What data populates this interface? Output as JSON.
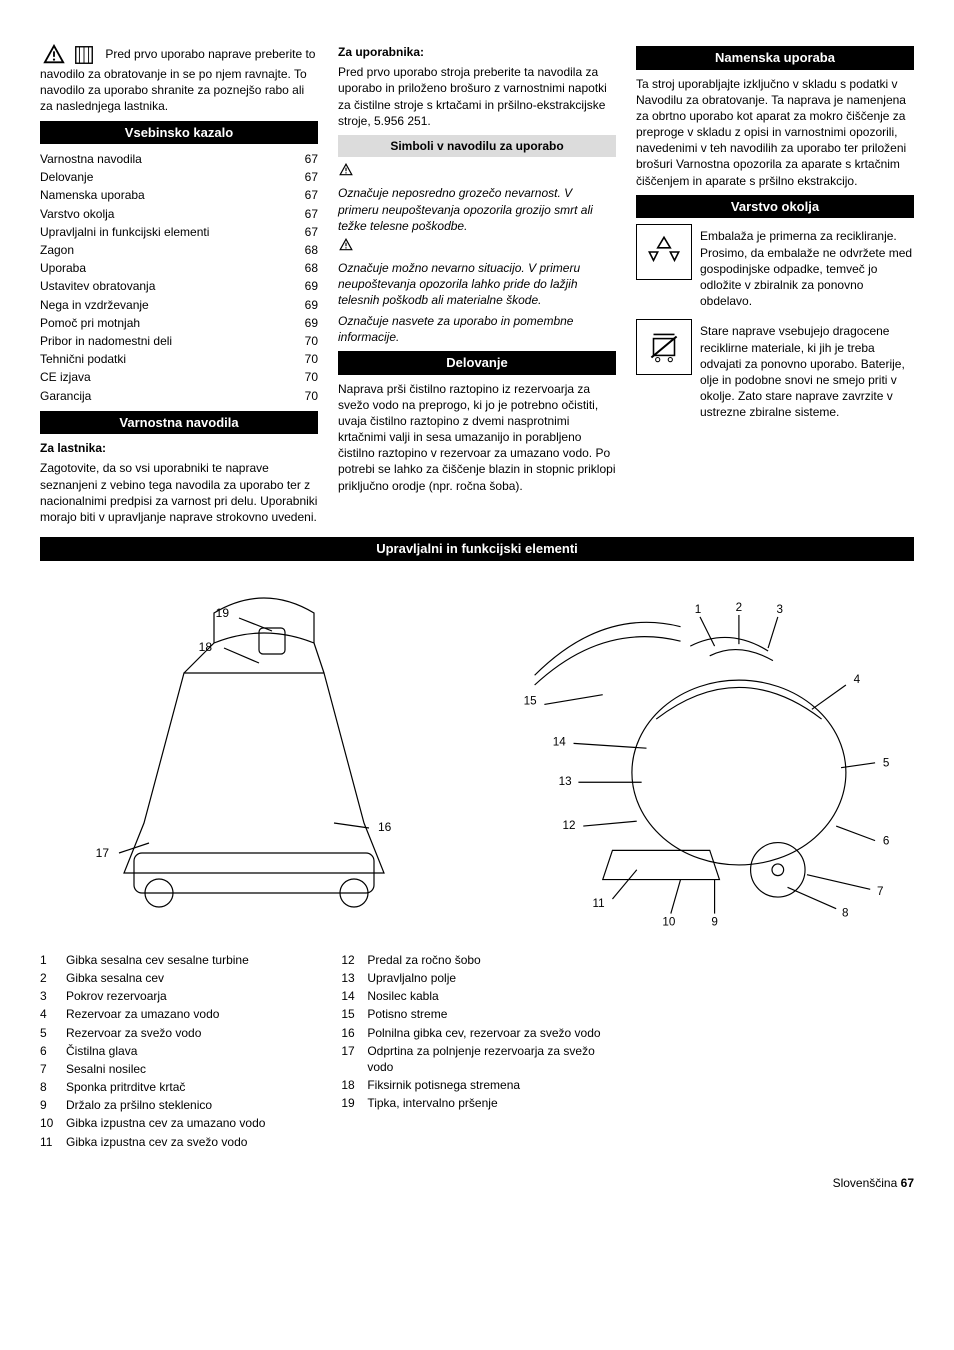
{
  "intro": "Pred prvo uporabo naprave preberite to navodilo za obratovanje in se po njem ravnajte. To navodilo za uporabo shranite za poznejšo rabo ali za naslednjega lastnika.",
  "toc": {
    "heading": "Vsebinsko kazalo",
    "items": [
      {
        "t": "Varnostna navodila",
        "p": "67"
      },
      {
        "t": "Delovanje",
        "p": "67"
      },
      {
        "t": "Namenska uporaba",
        "p": "67"
      },
      {
        "t": "Varstvo okolja",
        "p": "67"
      },
      {
        "t": "Upravljalni in funkcijski elementi",
        "p": "67"
      },
      {
        "t": "Zagon",
        "p": "68"
      },
      {
        "t": "Uporaba",
        "p": "68"
      },
      {
        "t": "Ustavitev obratovanja",
        "p": "69"
      },
      {
        "t": "Nega in vzdrževanje",
        "p": "69"
      },
      {
        "t": "Pomoč pri motnjah",
        "p": "69"
      },
      {
        "t": "Pribor in nadomestni deli",
        "p": "70"
      },
      {
        "t": "Tehnični podatki",
        "p": "70"
      },
      {
        "t": "CE izjava",
        "p": "70"
      },
      {
        "t": "Garancija",
        "p": "70"
      }
    ]
  },
  "safety": {
    "heading": "Varnostna navodila",
    "owner_title": "Za lastnika:",
    "owner_text": "Zagotovite, da so vsi uporabniki te naprave seznanjeni z vebino tega navodila za uporabo ter z nacionalnimi predpisi za varnost pri delu. Uporabniki morajo biti v upravljanje naprave strokovno uvedeni.",
    "user_title": "Za uporabnika:",
    "user_text": "Pred prvo uporabo stroja preberite ta navodila za uporabo in priloženo brošuro z varnostnimi napotki za čistilne stroje s krtačami in pršilno-ekstrakcijske stroje, 5.956 251."
  },
  "symbols": {
    "heading": "Simboli v navodilu za uporabo",
    "danger": "Označuje neposredno grozečo nevarnost. V primeru neupoštevanja opozorila grozijo smrt ali težke telesne poškodbe.",
    "warn": "Označuje možno nevarno situacijo. V primeru neupoštevanja opozorila lahko pride do lažjih telesnih poškodb ali materialne škode.",
    "info": "Označuje nasvete za uporabo in pomembne informacije."
  },
  "function": {
    "heading": "Delovanje",
    "text": "Naprava prši čistilno raztopino iz rezervoarja za svežo vodo na preprogo, ki jo je potrebno očistiti, uvaja čistilno raztopino z dvemi nasprotnimi krtačnimi valji in sesa umazanijo in porabljeno čistilno raztopino v rezervoar za umazano vodo. Po potrebi se lahko za čiščenje blazin in stopnic priklopi priključno orodje (npr. ročna šoba)."
  },
  "intended": {
    "heading": "Namenska uporaba",
    "text": "Ta stroj uporabljajte izključno v skladu s podatki v Navodilu za obratovanje. Ta naprava je namenjena za obrtno uporabo kot aparat za mokro čiščenje za preproge v skladu z opisi in varnostnimi opozorili, navedenimi v teh navodilih za uporabo ter priloženi brošuri Varnostna opozorila za aparate s krtačnim čiščenjem in aparate s pršilno ekstrakcijo."
  },
  "env": {
    "heading": "Varstvo okolja",
    "a": "Embalaža je primerna za recikliranje. Prosimo, da embalaže ne odvržete med gospodinjske odpadke, temveč jo odložite v zbiralnik za ponovno obdelavo.",
    "b": "Stare naprave vsebujejo dragocene reciklirne materiale, ki jih je treba odvajati za ponovno uporabo. Baterije, olje in podobne snovi ne smejo priti v okolje. Zato stare naprave zavrzite v ustrezne zbiralne sisteme."
  },
  "controls": {
    "heading": "Upravljalni in funkcijski elementi",
    "labels_left": [
      "19",
      "18",
      "17",
      "16"
    ],
    "labels_right": [
      "1",
      "2",
      "3",
      "4",
      "5",
      "6",
      "7",
      "8",
      "9",
      "10",
      "11",
      "12",
      "13",
      "14",
      "15"
    ]
  },
  "parts": [
    {
      "n": "1",
      "t": "Gibka sesalna cev sesalne turbine"
    },
    {
      "n": "2",
      "t": "Gibka sesalna cev"
    },
    {
      "n": "3",
      "t": "Pokrov rezervoarja"
    },
    {
      "n": "4",
      "t": "Rezervoar za umazano vodo"
    },
    {
      "n": "5",
      "t": "Rezervoar za svežo vodo"
    },
    {
      "n": "6",
      "t": "Čistilna glava"
    },
    {
      "n": "7",
      "t": "Sesalni nosilec"
    },
    {
      "n": "8",
      "t": "Sponka pritrditve krtač"
    },
    {
      "n": "9",
      "t": "Držalo za pršilno steklenico"
    },
    {
      "n": "10",
      "t": "Gibka izpustna cev za umazano vodo"
    },
    {
      "n": "11",
      "t": "Gibka izpustna cev za svežo vodo"
    },
    {
      "n": "12",
      "t": "Predal za ročno šobo"
    },
    {
      "n": "13",
      "t": "Upravljalno polje"
    },
    {
      "n": "14",
      "t": "Nosilec kabla"
    },
    {
      "n": "15",
      "t": "Potisno streme"
    },
    {
      "n": "16",
      "t": "Polnilna gibka cev, rezervoar za svežo vodo"
    },
    {
      "n": "17",
      "t": "Odprtina za polnjenje rezervoarja za svežo vodo"
    },
    {
      "n": "18",
      "t": "Fiksirnik potisnega stremena"
    },
    {
      "n": "19",
      "t": "Tipka, intervalno pršenje"
    }
  ],
  "footer": {
    "lang": "Slovenščina",
    "page": "67"
  }
}
